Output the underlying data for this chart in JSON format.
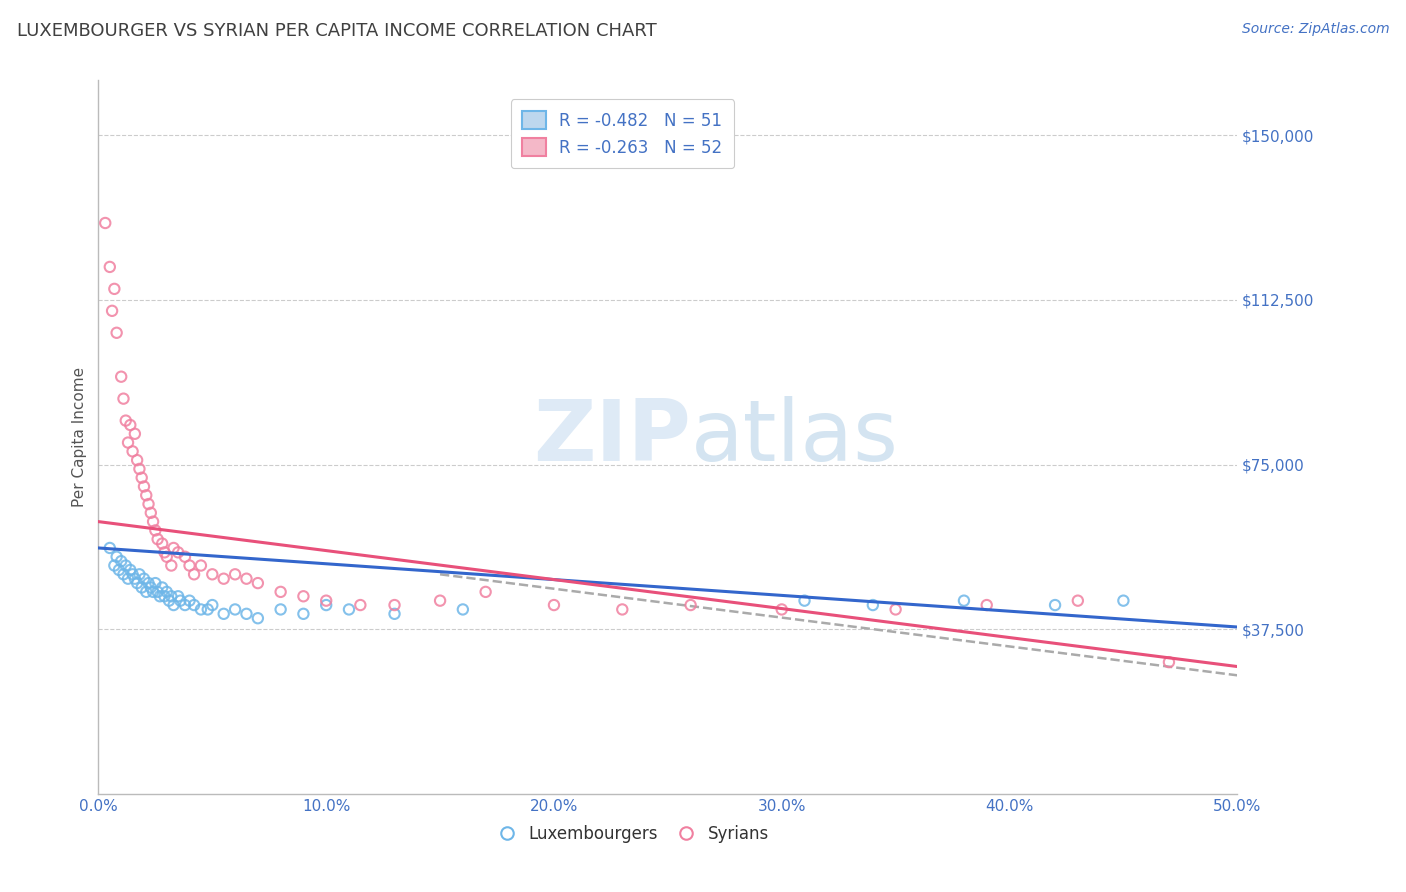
{
  "title": "LUXEMBOURGER VS SYRIAN PER CAPITA INCOME CORRELATION CHART",
  "source": "Source: ZipAtlas.com",
  "ylabel": "Per Capita Income",
  "xlim": [
    0.0,
    0.5
  ],
  "ylim": [
    0,
    162500
  ],
  "yticks": [
    0,
    37500,
    75000,
    112500,
    150000
  ],
  "ytick_labels": [
    "",
    "$37,500",
    "$75,000",
    "$112,500",
    "$150,000"
  ],
  "xticks": [
    0.0,
    0.1,
    0.2,
    0.3,
    0.4,
    0.5
  ],
  "xtick_labels": [
    "0.0%",
    "10.0%",
    "20.0%",
    "30.0%",
    "40.0%",
    "50.0%"
  ],
  "blue_color": "#6EB6E8",
  "pink_color": "#F080A0",
  "blue_fill": "#BDD7EE",
  "pink_fill": "#F4B8C8",
  "legend_r_blue": "R = -0.482",
  "legend_n_blue": "N = 51",
  "legend_r_pink": "R = -0.263",
  "legend_n_pink": "N = 52",
  "watermark_zip": "ZIP",
  "watermark_atlas": "atlas",
  "legend_lux": "Luxembourgers",
  "legend_syr": "Syrians",
  "blue_scatter_x": [
    0.005,
    0.007,
    0.008,
    0.009,
    0.01,
    0.011,
    0.012,
    0.013,
    0.014,
    0.015,
    0.016,
    0.017,
    0.018,
    0.019,
    0.02,
    0.021,
    0.022,
    0.023,
    0.024,
    0.025,
    0.026,
    0.027,
    0.028,
    0.029,
    0.03,
    0.031,
    0.032,
    0.033,
    0.035,
    0.036,
    0.038,
    0.04,
    0.042,
    0.045,
    0.048,
    0.05,
    0.055,
    0.06,
    0.065,
    0.07,
    0.08,
    0.09,
    0.1,
    0.11,
    0.13,
    0.16,
    0.31,
    0.34,
    0.38,
    0.42,
    0.45
  ],
  "blue_scatter_y": [
    56000,
    52000,
    54000,
    51000,
    53000,
    50000,
    52000,
    49000,
    51000,
    50000,
    49000,
    48000,
    50000,
    47000,
    49000,
    46000,
    48000,
    47000,
    46000,
    48000,
    46000,
    45000,
    47000,
    45000,
    46000,
    44000,
    45000,
    43000,
    45000,
    44000,
    43000,
    44000,
    43000,
    42000,
    42000,
    43000,
    41000,
    42000,
    41000,
    40000,
    42000,
    41000,
    43000,
    42000,
    41000,
    42000,
    44000,
    43000,
    44000,
    43000,
    44000
  ],
  "pink_scatter_x": [
    0.003,
    0.005,
    0.006,
    0.007,
    0.008,
    0.01,
    0.011,
    0.012,
    0.013,
    0.014,
    0.015,
    0.016,
    0.017,
    0.018,
    0.019,
    0.02,
    0.021,
    0.022,
    0.023,
    0.024,
    0.025,
    0.026,
    0.028,
    0.029,
    0.03,
    0.032,
    0.033,
    0.035,
    0.038,
    0.04,
    0.042,
    0.045,
    0.05,
    0.055,
    0.06,
    0.065,
    0.07,
    0.08,
    0.09,
    0.1,
    0.115,
    0.13,
    0.15,
    0.17,
    0.2,
    0.23,
    0.26,
    0.3,
    0.35,
    0.39,
    0.43,
    0.47
  ],
  "pink_scatter_y": [
    130000,
    120000,
    110000,
    115000,
    105000,
    95000,
    90000,
    85000,
    80000,
    84000,
    78000,
    82000,
    76000,
    74000,
    72000,
    70000,
    68000,
    66000,
    64000,
    62000,
    60000,
    58000,
    57000,
    55000,
    54000,
    52000,
    56000,
    55000,
    54000,
    52000,
    50000,
    52000,
    50000,
    49000,
    50000,
    49000,
    48000,
    46000,
    45000,
    44000,
    43000,
    43000,
    44000,
    46000,
    43000,
    42000,
    43000,
    42000,
    42000,
    43000,
    44000,
    30000
  ],
  "blue_trend_x": [
    0.0,
    0.5
  ],
  "blue_trend_y": [
    56000,
    38000
  ],
  "pink_trend_x": [
    0.0,
    0.5
  ],
  "pink_trend_y": [
    62000,
    29000
  ],
  "dashed_trend_x": [
    0.15,
    0.5
  ],
  "dashed_trend_y": [
    50000,
    27000
  ],
  "axis_color": "#4472C4",
  "grid_color": "#CCCCCC",
  "background_color": "#FFFFFF",
  "title_color": "#404040",
  "source_color": "#4472C4"
}
